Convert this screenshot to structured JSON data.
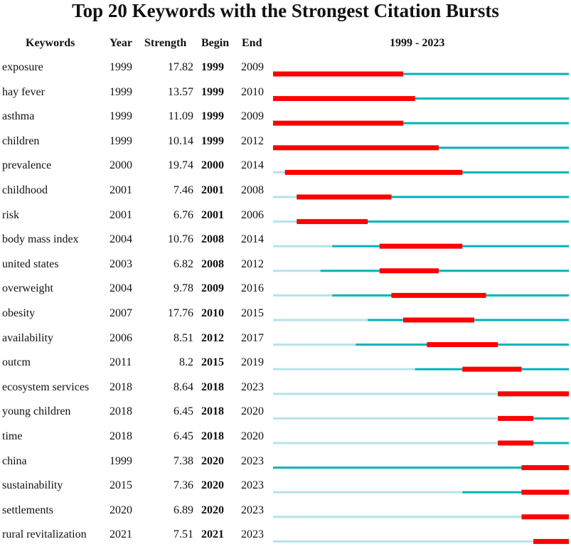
{
  "chart_data": {
    "type": "table",
    "title": "Top 20 Keywords with the Strongest Citation Bursts",
    "columns": [
      "Keywords",
      "Year",
      "Strength",
      "Begin",
      "End",
      "1999 - 2023"
    ],
    "range_start": 1999,
    "range_end": 2023,
    "colors": {
      "burst": "#ff0000",
      "active": "#00b3b8",
      "inactive": "#b5e3e8"
    },
    "rows": [
      {
        "keyword": "exposure",
        "year": "1999",
        "strength": "17.82",
        "begin": "1999",
        "end": "2009"
      },
      {
        "keyword": "hay fever",
        "year": "1999",
        "strength": "13.57",
        "begin": "1999",
        "end": "2010"
      },
      {
        "keyword": "asthma",
        "year": "1999",
        "strength": "11.09",
        "begin": "1999",
        "end": "2009"
      },
      {
        "keyword": "children",
        "year": "1999",
        "strength": "10.14",
        "begin": "1999",
        "end": "2012"
      },
      {
        "keyword": "prevalence",
        "year": "2000",
        "strength": "19.74",
        "begin": "2000",
        "end": "2014"
      },
      {
        "keyword": "childhood",
        "year": "2001",
        "strength": "7.46",
        "begin": "2001",
        "end": "2008"
      },
      {
        "keyword": "risk",
        "year": "2001",
        "strength": "6.76",
        "begin": "2001",
        "end": "2006"
      },
      {
        "keyword": "body mass index",
        "year": "2004",
        "strength": "10.76",
        "begin": "2008",
        "end": "2014"
      },
      {
        "keyword": "united states",
        "year": "2003",
        "strength": "6.82",
        "begin": "2008",
        "end": "2012"
      },
      {
        "keyword": "overweight",
        "year": "2004",
        "strength": "9.78",
        "begin": "2009",
        "end": "2016"
      },
      {
        "keyword": "obesity",
        "year": "2007",
        "strength": "17.76",
        "begin": "2010",
        "end": "2015"
      },
      {
        "keyword": "availability",
        "year": "2006",
        "strength": "8.51",
        "begin": "2012",
        "end": "2017"
      },
      {
        "keyword": "outcm",
        "year": "2011",
        "strength": "8.2",
        "begin": "2015",
        "end": "2019"
      },
      {
        "keyword": "ecosystem services",
        "year": "2018",
        "strength": "8.64",
        "begin": "2018",
        "end": "2023"
      },
      {
        "keyword": "young children",
        "year": "2018",
        "strength": "6.45",
        "begin": "2018",
        "end": "2020"
      },
      {
        "keyword": "time",
        "year": "2018",
        "strength": "6.45",
        "begin": "2018",
        "end": "2020"
      },
      {
        "keyword": "china",
        "year": "1999",
        "strength": "7.38",
        "begin": "2020",
        "end": "2023"
      },
      {
        "keyword": "sustainability",
        "year": "2015",
        "strength": "7.36",
        "begin": "2020",
        "end": "2023"
      },
      {
        "keyword": "settlements",
        "year": "2020",
        "strength": "6.89",
        "begin": "2020",
        "end": "2023"
      },
      {
        "keyword": "rural revitalization",
        "year": "2021",
        "strength": "7.51",
        "begin": "2021",
        "end": "2023"
      }
    ]
  }
}
